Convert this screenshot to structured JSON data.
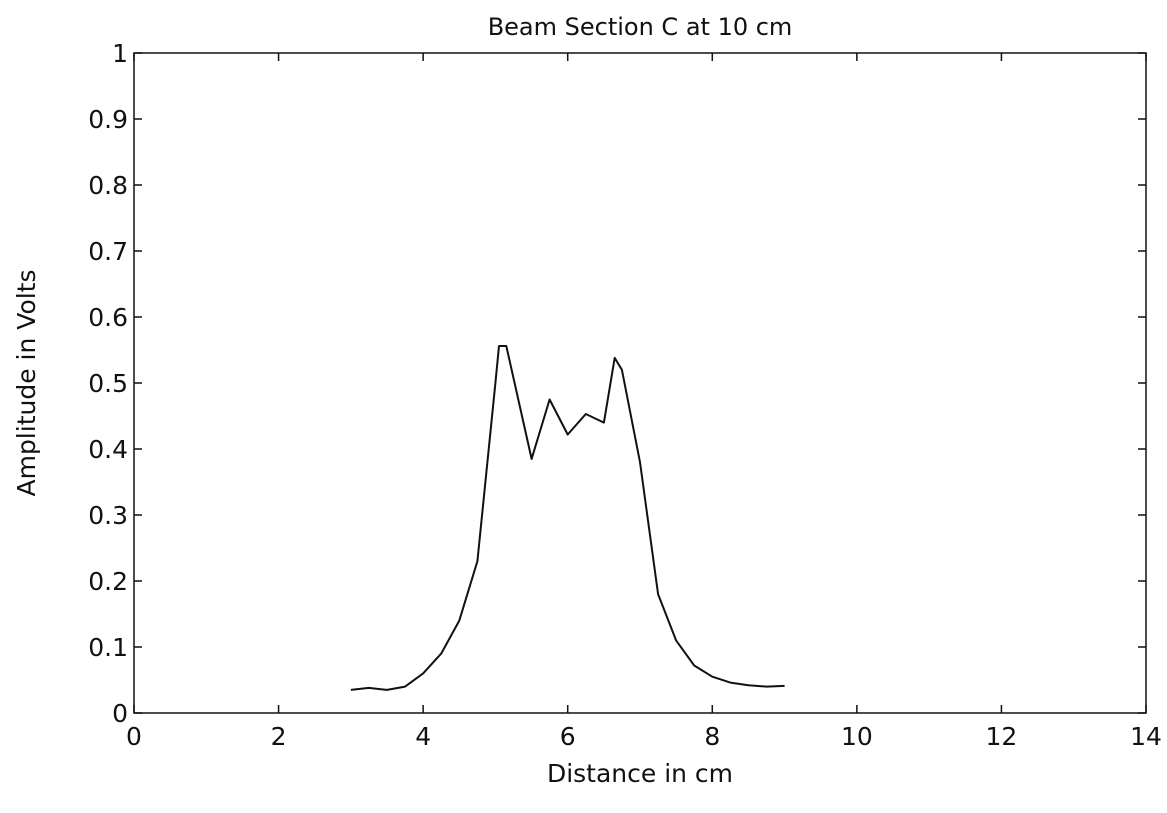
{
  "chart_data": {
    "type": "line",
    "title": "Beam Section C at 10 cm",
    "xlabel": "Distance in cm",
    "ylabel": "Amplitude in Volts",
    "xlim": [
      0,
      14
    ],
    "ylim": [
      0,
      1
    ],
    "x_ticks": [
      "0",
      "2",
      "4",
      "6",
      "8",
      "10",
      "12",
      "14"
    ],
    "y_ticks": [
      "0",
      "0.1",
      "0.2",
      "0.3",
      "0.4",
      "0.5",
      "0.6",
      "0.7",
      "0.8",
      "0.9",
      "1"
    ],
    "grid": false,
    "legend": "none",
    "series": [
      {
        "color": "#111111",
        "x": [
          3.0,
          3.25,
          3.5,
          3.75,
          4.0,
          4.25,
          4.5,
          4.75,
          5.0,
          5.05,
          5.15,
          5.5,
          5.75,
          6.0,
          6.25,
          6.5,
          6.65,
          6.75,
          7.0,
          7.25,
          7.5,
          7.75,
          8.0,
          8.25,
          8.5,
          8.75,
          9.0
        ],
        "y": [
          0.035,
          0.038,
          0.035,
          0.04,
          0.06,
          0.09,
          0.14,
          0.23,
          0.5,
          0.556,
          0.556,
          0.385,
          0.475,
          0.422,
          0.453,
          0.44,
          0.538,
          0.52,
          0.38,
          0.18,
          0.11,
          0.072,
          0.055,
          0.046,
          0.042,
          0.04,
          0.041
        ]
      }
    ]
  }
}
